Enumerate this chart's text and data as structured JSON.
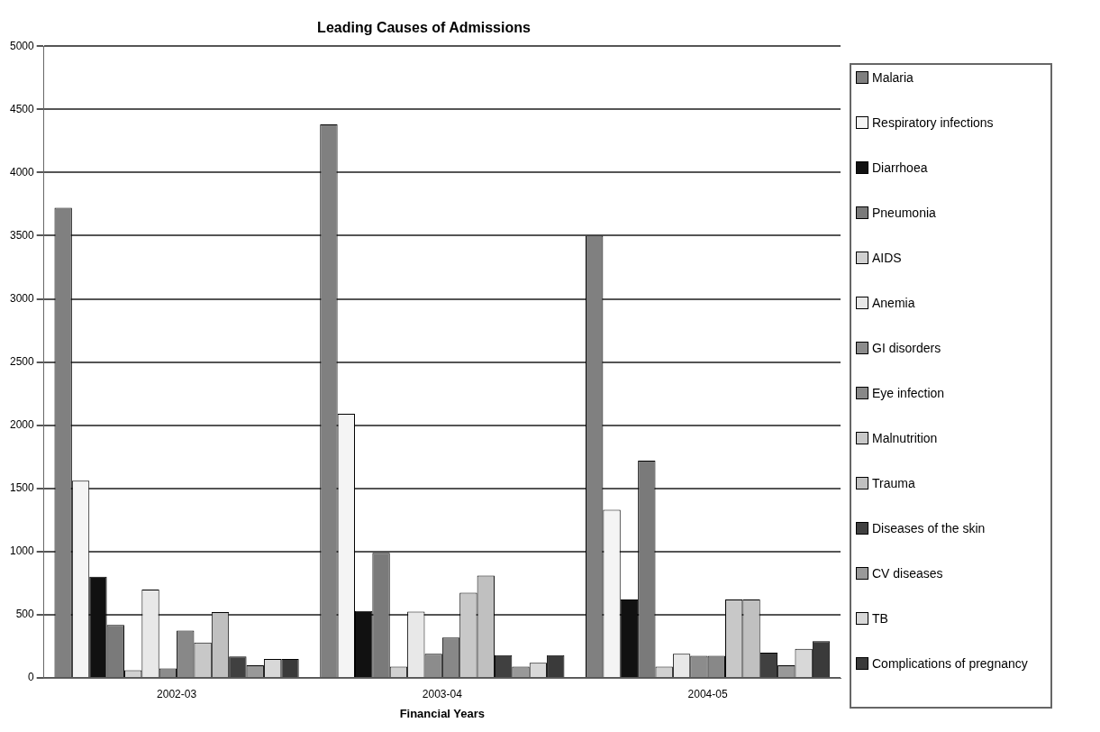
{
  "chart_data": {
    "type": "bar",
    "title": "Leading Causes of Admissions",
    "xlabel": "Financial Years",
    "categories": [
      "2002-03",
      "2003-04",
      "2004-05"
    ],
    "series": [
      {
        "name": "Malaria",
        "color": "#808080",
        "values": [
          3720,
          4380,
          3500
        ]
      },
      {
        "name": "Respiratory infections",
        "color": "#f4f4f4",
        "values": [
          1560,
          2090,
          1330
        ]
      },
      {
        "name": "Diarrhoea",
        "color": "#111111",
        "values": [
          800,
          530,
          620
        ]
      },
      {
        "name": "Pneumonia",
        "color": "#7a7a7a",
        "values": [
          420,
          990,
          1720
        ]
      },
      {
        "name": "AIDS",
        "color": "#d0d0d0",
        "values": [
          60,
          90,
          90
        ]
      },
      {
        "name": "Anemia",
        "color": "#e8e8e8",
        "values": [
          700,
          525,
          190
        ]
      },
      {
        "name": "GI disorders",
        "color": "#8c8c8c",
        "values": [
          75,
          190,
          175
        ]
      },
      {
        "name": "Eye infection",
        "color": "#888888",
        "values": [
          375,
          320,
          175
        ]
      },
      {
        "name": "Malnutrition",
        "color": "#c8c8c8",
        "values": [
          280,
          675,
          620
        ]
      },
      {
        "name": "Trauma",
        "color": "#c0c0c0",
        "values": [
          520,
          810,
          620
        ]
      },
      {
        "name": "Diseases of the skin",
        "color": "#404040",
        "values": [
          170,
          180,
          200
        ]
      },
      {
        "name": "CV diseases",
        "color": "#999999",
        "values": [
          100,
          90,
          100
        ]
      },
      {
        "name": "TB",
        "color": "#d8d8d8",
        "values": [
          150,
          120,
          230
        ]
      },
      {
        "name": "Complications of pregnancy",
        "color": "#3a3a3a",
        "values": [
          150,
          180,
          290
        ]
      }
    ],
    "ylim": [
      0,
      5000
    ],
    "yticks": [
      0,
      500,
      1000,
      1500,
      2000,
      2500,
      3000,
      3500,
      4000,
      4500,
      5000
    ],
    "grid": "y",
    "legend": "right"
  }
}
